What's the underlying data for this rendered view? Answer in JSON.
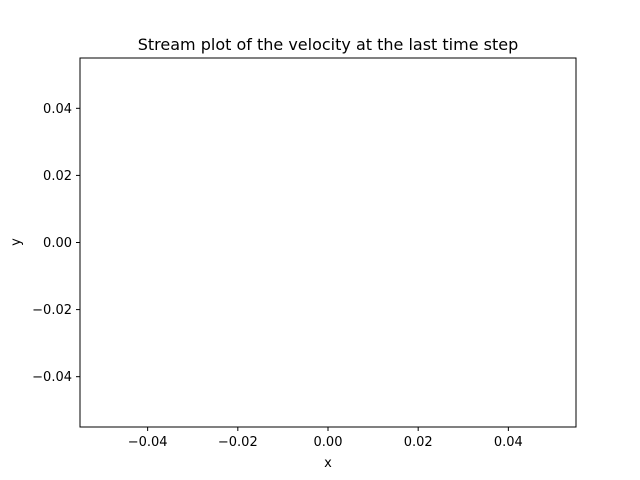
{
  "chart_data": {
    "type": "streamplot",
    "title": "Stream plot of the velocity at the last time step",
    "xlabel": "x",
    "ylabel": "y",
    "xlim": [
      -0.055,
      0.055
    ],
    "ylim": [
      -0.055,
      0.055
    ],
    "x_ticks": [
      -0.04,
      -0.02,
      0.0,
      0.02,
      0.04
    ],
    "y_ticks": [
      -0.04,
      -0.02,
      0.0,
      0.02,
      0.04
    ],
    "x_tick_labels": [
      "−0.04",
      "−0.02",
      "0.00",
      "0.02",
      "0.04"
    ],
    "y_tick_labels": [
      "−0.04",
      "−0.02",
      "0.00",
      "0.02",
      "0.04"
    ],
    "series": [],
    "grid": false,
    "legend": "none"
  }
}
